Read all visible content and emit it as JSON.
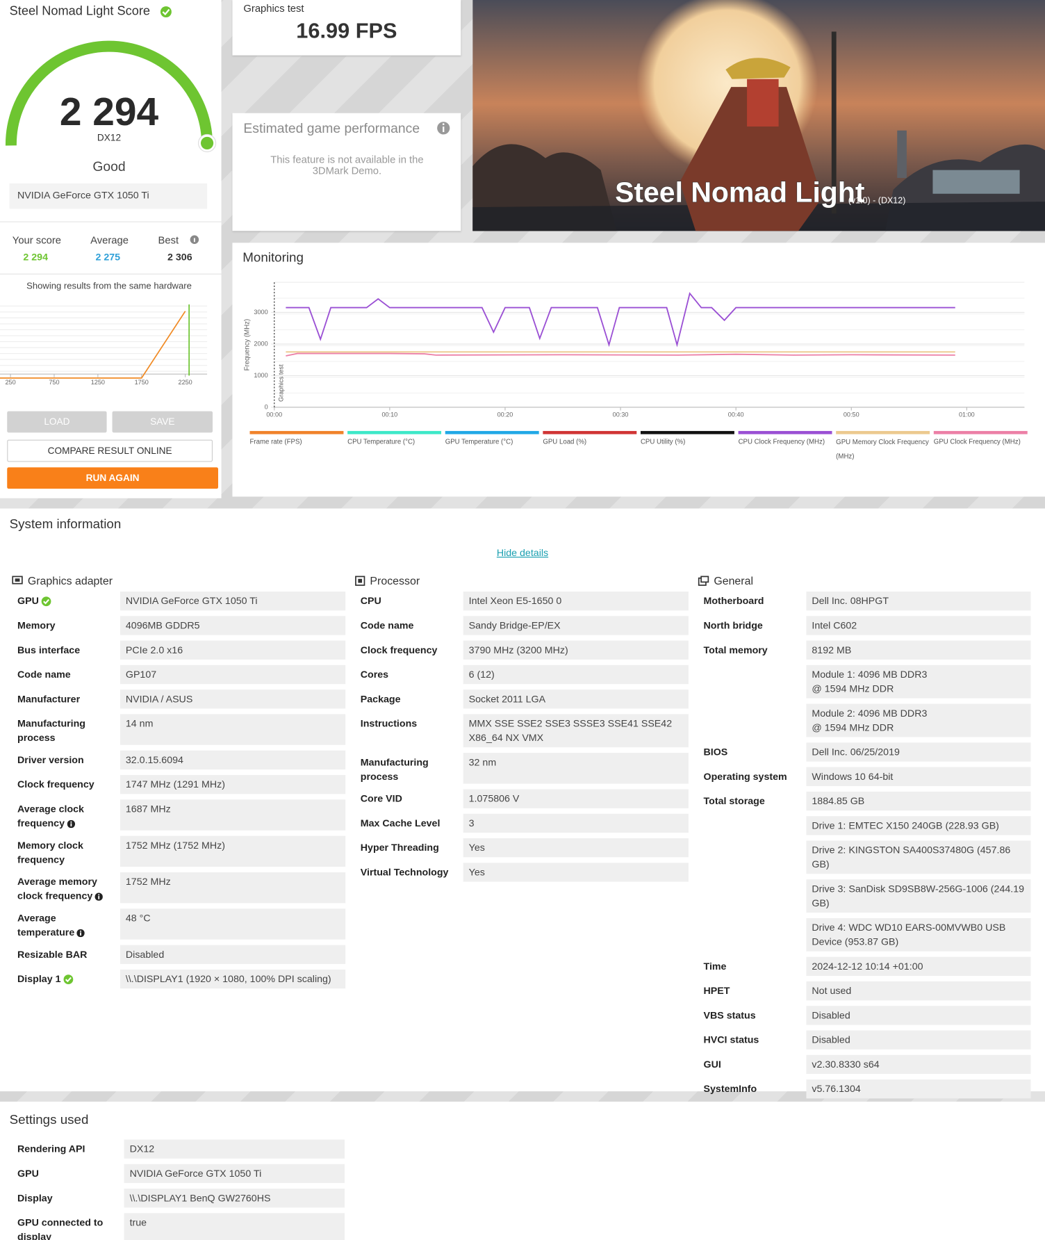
{
  "score_panel": {
    "title": "Steel Nomad Light Score",
    "score": "2 294",
    "api": "DX12",
    "rating": "Good",
    "gpu": "NVIDIA GeForce GTX 1050 Ti",
    "your_score_label": "Your score",
    "your_score": "2 294",
    "average_label": "Average",
    "average": "2 275",
    "best_label": "Best",
    "best": "2 306",
    "showing": "Showing results from the same hardware",
    "buttons": {
      "load": "LOAD",
      "save": "SAVE",
      "compare": "COMPARE RESULT ONLINE",
      "run": "RUN AGAIN"
    }
  },
  "score_distribution": {
    "type": "line",
    "xlim": [
      130,
      2500
    ],
    "ylim": [
      0,
      110
    ],
    "xticks": [
      250,
      750,
      1250,
      1750,
      2250
    ],
    "series": [
      {
        "color": "#f08a24",
        "x": [
          130,
          1750,
          2250
        ],
        "values": [
          0,
          0,
          100
        ]
      }
    ],
    "marker": {
      "x": 2294,
      "color": "#6ec531"
    }
  },
  "graphics_test": {
    "label": "Graphics test",
    "value": "16.99 FPS"
  },
  "estimated_performance": {
    "title": "Estimated game performance",
    "message": "This feature is not available in the 3DMark Demo."
  },
  "hero": {
    "title": "Steel Nomad Light",
    "subtitle": "(v1.0) - (DX12)"
  },
  "monitoring": {
    "title": "Monitoring",
    "type": "line",
    "y_label": "Frequency (MHz)",
    "marker_label": "Graphics test",
    "xlim": [
      0,
      65
    ],
    "ylim": [
      0,
      3950
    ],
    "xticks": [
      {
        "value": 0,
        "label": "00:00"
      },
      {
        "value": 10,
        "label": "00:10"
      },
      {
        "value": 20,
        "label": "00:20"
      },
      {
        "value": 30,
        "label": "00:30"
      },
      {
        "value": 40,
        "label": "00:40"
      },
      {
        "value": 50,
        "label": "00:50"
      },
      {
        "value": 60,
        "label": "01:00"
      }
    ],
    "yticks": [
      0,
      1000,
      2000,
      3000
    ],
    "series": [
      {
        "name": "Frame rate (FPS)",
        "color": "#f0822a"
      },
      {
        "name": "CPU Temperature (°C)",
        "color": "#3de8c8"
      },
      {
        "name": "GPU Temperature (°C)",
        "color": "#20a8e6"
      },
      {
        "name": "GPU Load (%)",
        "color": "#d03434"
      },
      {
        "name": "CPU Utility (%)",
        "color": "#111111"
      },
      {
        "name": "CPU Clock Frequency (MHz)",
        "color": "#9a4fd4",
        "x": [
          1.0,
          3.0,
          4.0,
          4.9,
          8.0,
          9.0,
          10.0,
          18.0,
          19.0,
          20.0,
          22.1,
          23.0,
          24.0,
          28.0,
          29.0,
          29.9,
          34.0,
          34.9,
          36.0,
          37.0,
          37.9,
          39.0,
          40.0,
          59.0
        ],
        "values": [
          3150,
          3150,
          2150,
          3150,
          3150,
          3425,
          3150,
          3150,
          2375,
          3150,
          3150,
          2175,
          3150,
          3150,
          1975,
          3150,
          3150,
          1975,
          3600,
          3150,
          3150,
          2750,
          3150,
          3150
        ]
      },
      {
        "name": "GPU Memory Clock Frequency (MHz)",
        "color": "#ecc98e",
        "x": [
          1,
          59
        ],
        "values": [
          1750,
          1750
        ]
      },
      {
        "name": "GPU Clock Frequency (MHz)",
        "color": "#ec7fa6",
        "x": [
          1,
          2,
          10,
          13,
          14,
          25,
          35,
          40,
          45,
          50,
          59
        ],
        "values": [
          1625,
          1700,
          1700,
          1690,
          1650,
          1660,
          1650,
          1675,
          1650,
          1660,
          1650
        ]
      }
    ]
  },
  "system_information": {
    "title": "System information",
    "toggle": "Hide details",
    "columns": [
      {
        "title": "Graphics adapter",
        "rows": [
          {
            "label": "GPU",
            "icon": "check",
            "value": "NVIDIA GeForce GTX 1050 Ti"
          },
          {
            "label": "Memory",
            "value": "4096MB GDDR5"
          },
          {
            "label": "Bus interface",
            "value": "PCIe 2.0 x16"
          },
          {
            "label": "Code name",
            "value": "GP107"
          },
          {
            "label": "Manufacturer",
            "value": "NVIDIA / ASUS"
          },
          {
            "label": "Manufacturing process",
            "value": "14 nm"
          },
          {
            "label": "Driver version",
            "value": "32.0.15.6094"
          },
          {
            "label": "Clock frequency",
            "value": "1747 MHz (1291 MHz)"
          },
          {
            "label": "Average clock frequency",
            "icon": "info",
            "value": "1687 MHz"
          },
          {
            "label": "Memory clock frequency",
            "value": "1752 MHz (1752 MHz)"
          },
          {
            "label": "Average memory clock frequency",
            "icon": "info",
            "value": "1752 MHz"
          },
          {
            "label": "Average temperature",
            "icon": "info",
            "value": "48 °C"
          },
          {
            "label": "Resizable BAR",
            "value": "Disabled"
          },
          {
            "label": "Display 1",
            "icon": "check",
            "value": "\\\\.\\DISPLAY1 (1920 × 1080, 100% DPI scaling)"
          }
        ]
      },
      {
        "title": "Processor",
        "rows": [
          {
            "label": "CPU",
            "value": "Intel Xeon E5-1650 0"
          },
          {
            "label": "Code name",
            "value": "Sandy Bridge-EP/EX"
          },
          {
            "label": "Clock frequency",
            "value": "3790 MHz (3200 MHz)"
          },
          {
            "label": "Cores",
            "value": "6 (12)"
          },
          {
            "label": "Package",
            "value": "Socket 2011 LGA"
          },
          {
            "label": "Instructions",
            "value": "MMX SSE SSE2 SSE3 SSSE3 SSE41 SSE42 X86_64 NX VMX"
          },
          {
            "label": "Manufacturing process",
            "value": "32 nm"
          },
          {
            "label": "Core VID",
            "value": "1.075806 V"
          },
          {
            "label": "Max Cache Level",
            "value": "3"
          },
          {
            "label": "Hyper Threading",
            "value": "Yes"
          },
          {
            "label": "Virtual Technology",
            "value": "Yes"
          }
        ]
      },
      {
        "title": "General",
        "rows": [
          {
            "label": "Motherboard",
            "value": "Dell Inc. 08HPGT"
          },
          {
            "label": "North bridge",
            "value": "Intel C602"
          },
          {
            "label": "Total memory",
            "value": "8192 MB"
          },
          {
            "value": [
              "Module 1: 4096 MB DDR3",
              "@ 1594 MHz DDR"
            ]
          },
          {
            "value": [
              "Module 2: 4096 MB DDR3",
              "@ 1594 MHz DDR"
            ]
          },
          {
            "label": "BIOS",
            "value": "Dell Inc. 06/25/2019"
          },
          {
            "label": "Operating system",
            "value": "Windows 10 64-bit"
          },
          {
            "label": "Total storage",
            "value": "1884.85 GB"
          },
          {
            "value": "Drive 1: EMTEC X150 240GB (228.93 GB)"
          },
          {
            "value": "Drive 2: KINGSTON SA400S37480G (457.86 GB)"
          },
          {
            "value": "Drive 3: SanDisk SD9SB8W-256G-1006 (244.19 GB)"
          },
          {
            "value": "Drive 4: WDC WD10 EARS-00MVWB0 USB Device (953.87 GB)"
          },
          {
            "label": "Time",
            "value": "2024-12-12 10:14 +01:00"
          },
          {
            "label": "HPET",
            "value": "Not used"
          },
          {
            "label": "VBS status",
            "value": "Disabled"
          },
          {
            "label": "HVCI status",
            "value": "Disabled"
          },
          {
            "label": "GUI",
            "value": "v2.30.8330 s64"
          },
          {
            "label": "SystemInfo",
            "value": "v5.76.1304"
          }
        ]
      }
    ]
  },
  "settings_used": {
    "title": "Settings used",
    "rows": [
      {
        "label": "Rendering API",
        "value": "DX12"
      },
      {
        "label": "GPU",
        "value": "NVIDIA GeForce GTX 1050 Ti"
      },
      {
        "label": "Display",
        "value": "\\\\.\\DISPLAY1 BenQ GW2760HS"
      },
      {
        "label": "GPU connected to display",
        "value": "true"
      }
    ]
  }
}
